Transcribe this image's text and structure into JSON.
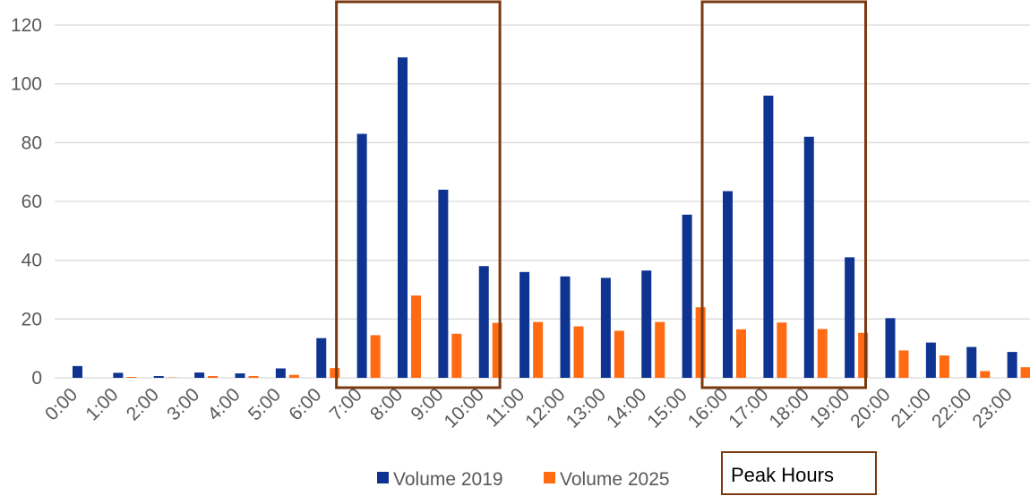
{
  "chart_data": {
    "type": "bar",
    "categories": [
      "0:00",
      "1:00",
      "2:00",
      "3:00",
      "4:00",
      "5:00",
      "6:00",
      "7:00",
      "8:00",
      "9:00",
      "10:00",
      "11:00",
      "12:00",
      "13:00",
      "14:00",
      "15:00",
      "16:00",
      "17:00",
      "18:00",
      "19:00",
      "20:00",
      "21:00",
      "22:00",
      "23:00"
    ],
    "series": [
      {
        "name": "Volume 2019",
        "color": "#0f3391",
        "values": [
          4,
          1.7,
          0.6,
          1.8,
          1.5,
          3.2,
          13.5,
          83,
          109,
          64,
          38,
          36,
          34.5,
          34,
          36.5,
          55.5,
          63.5,
          96,
          82,
          41,
          20.3,
          12,
          10.5,
          8.8
        ]
      },
      {
        "name": "Volume 2025",
        "color": "#ff6a13",
        "values": [
          0,
          0.3,
          0.1,
          0.6,
          0.6,
          1,
          3.3,
          14.5,
          28,
          15,
          18.7,
          19,
          17.5,
          16,
          19,
          24,
          16.5,
          18.8,
          16.6,
          15.3,
          9.3,
          7.6,
          2.3,
          3.6
        ]
      }
    ],
    "ylim": [
      0,
      120
    ],
    "yticks": [
      0,
      20,
      40,
      60,
      80,
      100,
      120
    ],
    "grid": true,
    "legend": "bottom",
    "title": "",
    "xlabel": "",
    "ylabel": "",
    "annotations": [
      {
        "label": "Peak Hours",
        "from": "7:00",
        "to": "10:00",
        "color": "#7b3a10"
      },
      {
        "from": "16:00",
        "to": "19:00",
        "color": "#7b3a10"
      }
    ]
  }
}
